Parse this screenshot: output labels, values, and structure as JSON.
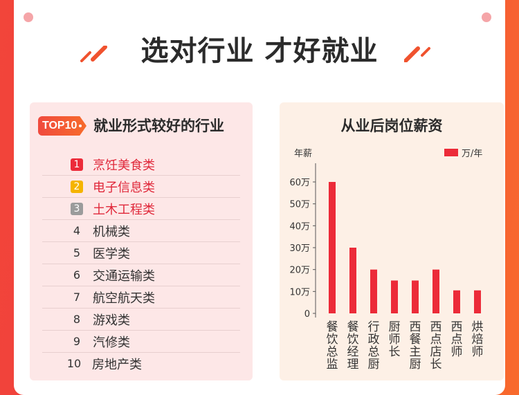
{
  "headline": "选对行业 才好就业",
  "colors": {
    "accent": "#ec2b39",
    "gold": "#f5b400",
    "silver": "#9b9b9b",
    "bar": "#ec2b39"
  },
  "left_panel": {
    "badge": "TOP10",
    "title": "就业形式较好的行业",
    "items": [
      {
        "rank": "1",
        "label": "烹饪美食类",
        "highlight": "red"
      },
      {
        "rank": "2",
        "label": "电子信息类",
        "highlight": "gold"
      },
      {
        "rank": "3",
        "label": "土木工程类",
        "highlight": "silver"
      },
      {
        "rank": "4",
        "label": "机械类"
      },
      {
        "rank": "5",
        "label": "医学类"
      },
      {
        "rank": "6",
        "label": "交通运输类"
      },
      {
        "rank": "7",
        "label": "航空航天类"
      },
      {
        "rank": "8",
        "label": "游戏类"
      },
      {
        "rank": "9",
        "label": "汽修类"
      },
      {
        "rank": "10",
        "label": "房地产类"
      }
    ]
  },
  "right_panel": {
    "title": "从业后岗位薪资"
  },
  "chart_data": {
    "type": "bar",
    "title": "从业后岗位薪资",
    "ylabel": "年薪",
    "ylim": [
      0,
      60
    ],
    "yticks": [
      "0",
      "10万",
      "20万",
      "30万",
      "40万",
      "50万",
      "60万"
    ],
    "legend": "万/年",
    "legend_position": "top-right",
    "grid": false,
    "categories": [
      "餐饮总监",
      "餐饮经理",
      "行政总厨",
      "厨师长",
      "西餐主厨",
      "西点店长",
      "西点师",
      "烘焙师"
    ],
    "series": [
      {
        "name": "万/年",
        "values": [
          60,
          30,
          20,
          15,
          15,
          20,
          10.5,
          10.5
        ]
      }
    ]
  }
}
